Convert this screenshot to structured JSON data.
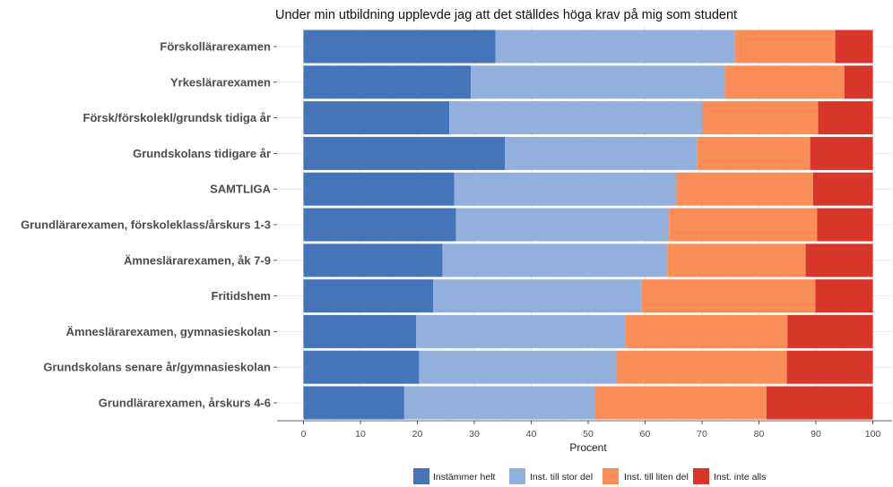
{
  "chart_data": {
    "type": "bar",
    "orientation": "horizontal",
    "stacked": true,
    "title": "Under min utbildning upplevde jag att det ställdes höga krav på mig som student",
    "xlabel": "Procent",
    "ylabel": "",
    "xlim": [
      0,
      100
    ],
    "xticks": [
      0,
      10,
      20,
      30,
      40,
      50,
      60,
      70,
      80,
      90,
      100
    ],
    "grid": true,
    "legend_position": "bottom",
    "categories": [
      "Förskollärarexamen",
      "Yrkeslärarexamen",
      "Försk/förskolekl/grundsk tidiga år",
      "Grundskolans tidigare år",
      "SAMTLIGA",
      "Grundlärarexamen, förskoleklass/årskurs 1-3",
      "Ämneslärarexamen, åk 7-9",
      "Fritidshem",
      "Ämneslärarexamen, gymnasieskolan",
      "Grundskolans senare år/gymnasieskolan",
      "Grundlärarexamen, årskurs 4-6"
    ],
    "series": [
      {
        "name": "Instämmer helt",
        "color": "#4674b9",
        "values": [
          33.7,
          29.4,
          25.6,
          35.4,
          26.5,
          26.8,
          24.4,
          22.8,
          19.8,
          20.3,
          17.7
        ]
      },
      {
        "name": "Inst. till stor del",
        "color": "#92b0dc",
        "values": [
          42.0,
          44.6,
          44.4,
          33.7,
          39.0,
          37.4,
          39.5,
          36.6,
          36.8,
          34.6,
          33.4
        ]
      },
      {
        "name": "Inst. till liten del",
        "color": "#fb8d58",
        "values": [
          17.7,
          21.0,
          20.4,
          19.9,
          24.0,
          26.0,
          24.3,
          30.5,
          28.4,
          30.0,
          30.2
        ]
      },
      {
        "name": "Inst. inte alls",
        "color": "#d7362a",
        "values": [
          6.6,
          5.0,
          9.6,
          11.0,
          10.5,
          9.8,
          11.8,
          10.1,
          15.0,
          15.1,
          18.7
        ]
      }
    ]
  }
}
